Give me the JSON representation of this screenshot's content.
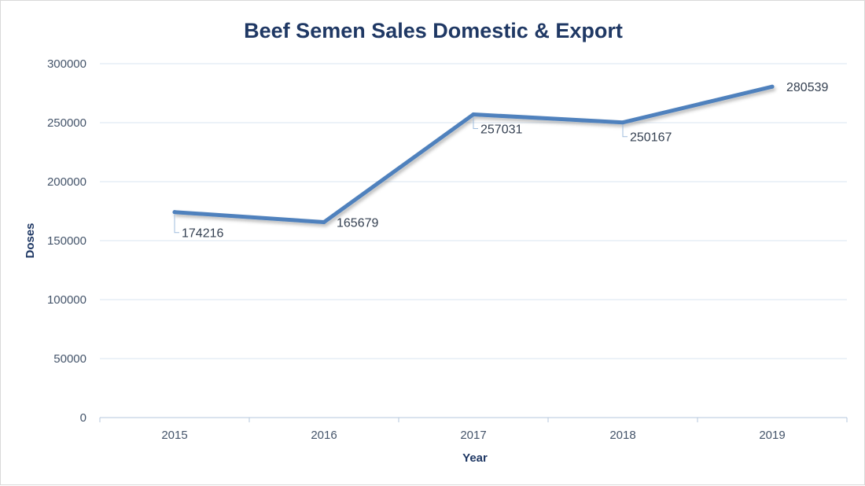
{
  "chart_data": {
    "type": "line",
    "title": "Beef Semen Sales Domestic & Export",
    "xlabel": "Year",
    "ylabel": "Doses",
    "categories": [
      "2015",
      "2016",
      "2017",
      "2018",
      "2019"
    ],
    "series": [
      {
        "values": [
          174216,
          165679,
          257031,
          250167,
          280539
        ],
        "color": "#4f81bd"
      }
    ],
    "ylim": [
      0,
      300000
    ],
    "yticks": [
      0,
      50000,
      100000,
      150000,
      200000,
      250000,
      300000
    ],
    "grid": true,
    "legend": "none",
    "data_labels": [
      "174216",
      "165679",
      "257031",
      "250167",
      "280539"
    ]
  }
}
